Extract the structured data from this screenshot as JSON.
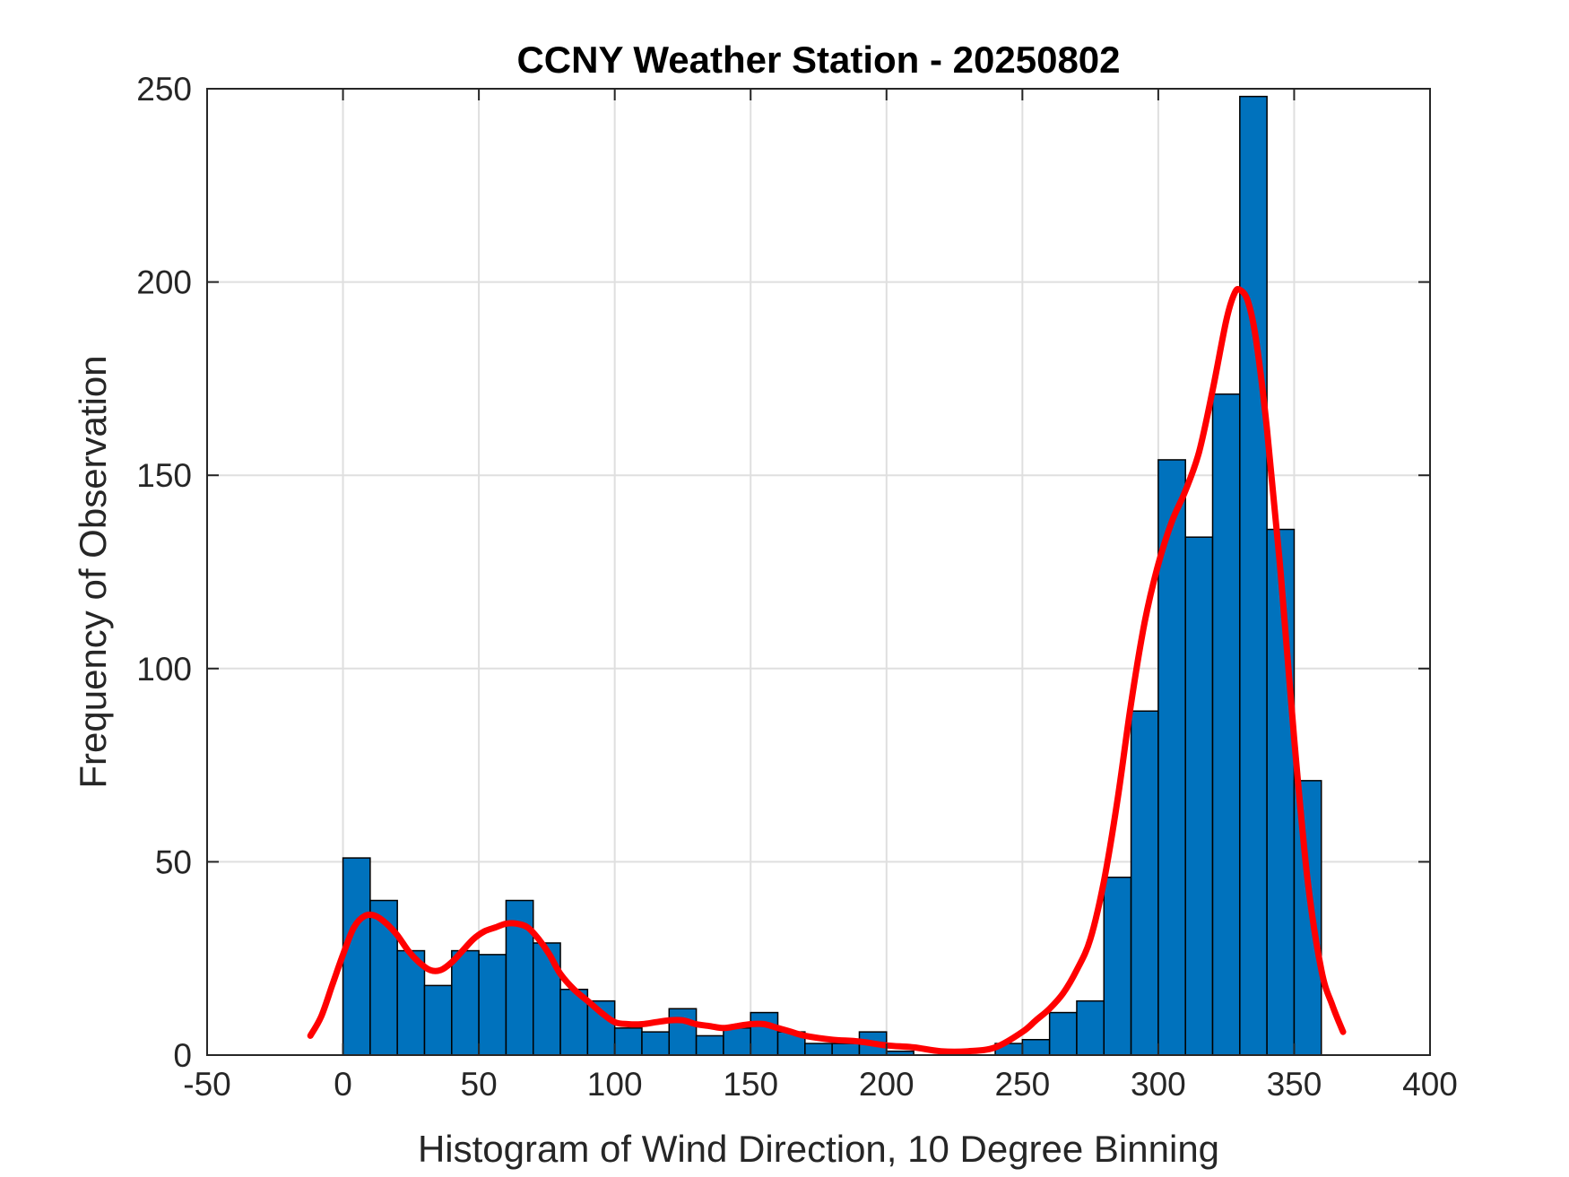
{
  "chart_data": {
    "type": "bar",
    "title": "CCNY Weather Station - 20250802",
    "xlabel": "Histogram of Wind Direction, 10 Degree Binning",
    "ylabel": "Frequency of Observation",
    "xlim": [
      -50,
      400
    ],
    "ylim": [
      0,
      250
    ],
    "xticks": [
      -50,
      0,
      50,
      100,
      150,
      200,
      250,
      300,
      350,
      400
    ],
    "yticks": [
      0,
      50,
      100,
      150,
      200,
      250
    ],
    "grid": true,
    "bin_width": 10,
    "bins": {
      "left_edges": [
        0,
        10,
        20,
        30,
        40,
        50,
        60,
        70,
        80,
        90,
        100,
        110,
        120,
        130,
        140,
        150,
        160,
        170,
        180,
        190,
        200,
        210,
        220,
        230,
        240,
        250,
        260,
        270,
        280,
        290,
        300,
        310,
        320,
        330,
        340,
        350
      ],
      "counts": [
        51,
        40,
        27,
        18,
        27,
        26,
        40,
        29,
        17,
        14,
        7,
        6,
        12,
        5,
        7,
        11,
        6,
        3,
        3,
        6,
        1,
        0,
        0,
        0,
        3,
        4,
        11,
        14,
        46,
        89,
        154,
        134,
        171,
        248,
        136,
        71
      ]
    },
    "curve": {
      "x": [
        -12,
        -8,
        -4,
        0,
        4,
        8,
        12,
        16,
        20,
        24,
        28,
        32,
        36,
        40,
        44,
        48,
        52,
        56,
        60,
        64,
        68,
        72,
        76,
        80,
        85,
        90,
        95,
        100,
        105,
        110,
        115,
        120,
        125,
        130,
        135,
        140,
        145,
        150,
        155,
        160,
        165,
        170,
        180,
        190,
        200,
        210,
        220,
        230,
        240,
        250,
        255,
        260,
        265,
        270,
        275,
        280,
        285,
        290,
        295,
        300,
        305,
        310,
        315,
        320,
        325,
        328,
        330,
        333,
        336,
        340,
        345,
        350,
        355,
        360,
        364,
        368
      ],
      "y": [
        5,
        10,
        18,
        26,
        33,
        36,
        36,
        34,
        31,
        27,
        24,
        22,
        22,
        24,
        27,
        30,
        32,
        33,
        34,
        34,
        33,
        30,
        26,
        21,
        17,
        14,
        11,
        8.5,
        8,
        8,
        8.5,
        9,
        9,
        8,
        7.5,
        7,
        7.5,
        8,
        8,
        7,
        6,
        5,
        4,
        3.5,
        2.5,
        2,
        1,
        1,
        2,
        6,
        9,
        12,
        16,
        22,
        30,
        45,
        66,
        91,
        112,
        127,
        138,
        146,
        156,
        172,
        190,
        197,
        198,
        195,
        185,
        162,
        125,
        82,
        45,
        22,
        13,
        6
      ],
      "color": "#ff0000"
    },
    "bar_color": "#0072bd",
    "bar_edge_color": "#000000"
  }
}
